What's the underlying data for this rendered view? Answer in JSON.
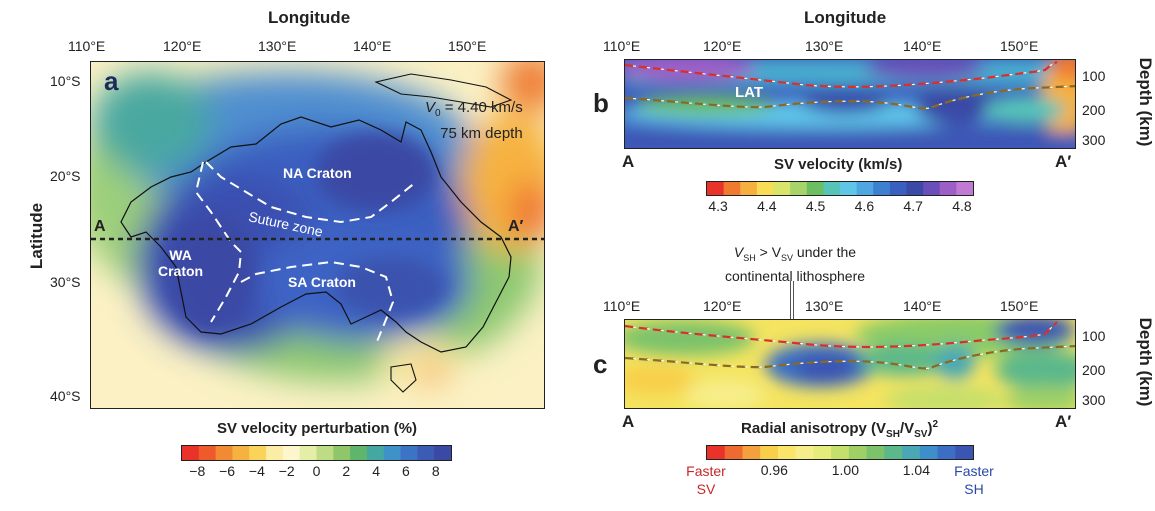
{
  "panel_a": {
    "label": "a",
    "top_title": "Longitude",
    "lon_ticks": [
      "110°E",
      "120°E",
      "130°E",
      "140°E",
      "150°E"
    ],
    "lat_ticks": [
      "10°S",
      "20°S",
      "30°S",
      "40°S"
    ],
    "y_title": "Latitude",
    "v0_symbol": "V",
    "v0_sub": "0",
    "v0_value": " = 4.40 km/s",
    "depth_note": "75 km depth",
    "regions": {
      "na": "NA Craton",
      "wa": "WA\nCraton",
      "sa": "SA Craton",
      "suture": "Suture zone"
    },
    "profile_start": "A",
    "profile_end": "A′",
    "colorbar": {
      "title": "SV velocity perturbation (%)",
      "ticks": [
        "−8",
        "−6",
        "−4",
        "−2",
        "0",
        "2",
        "4",
        "6",
        "8"
      ],
      "colors": [
        "#e8322a",
        "#ee5a2c",
        "#f28a33",
        "#f6b240",
        "#f9d35a",
        "#fbeca6",
        "#fdf6cc",
        "#e4eea6",
        "#bddc85",
        "#8fc66a",
        "#5fb56c",
        "#45a8a0",
        "#3e92c8",
        "#3b74c4",
        "#3c5bb5",
        "#3a49a4"
      ]
    }
  },
  "panel_b": {
    "label": "b",
    "top_title": "Longitude",
    "lon_ticks": [
      "110°E",
      "120°E",
      "130°E",
      "140°E",
      "150°E"
    ],
    "depth_ticks": [
      "100",
      "200",
      "300"
    ],
    "depth_title": "Depth (km)",
    "lat_label": "LAT",
    "start": "A",
    "end": "A′",
    "colorbar": {
      "title": "SV velocity (km/s)",
      "ticks": [
        "4.3",
        "4.4",
        "4.5",
        "4.6",
        "4.7",
        "4.8"
      ],
      "colors": [
        "#e8322a",
        "#f07a30",
        "#f6b040",
        "#f8dc55",
        "#d8e46a",
        "#a6d36a",
        "#6cbf60",
        "#56c5b8",
        "#5fc6e8",
        "#4fa6e0",
        "#3d7fd0",
        "#3a5fc0",
        "#3b4aa6",
        "#6a4fb8",
        "#9d5fc6",
        "#c07ad4"
      ]
    }
  },
  "panel_c": {
    "label": "c",
    "lon_ticks": [
      "110°E",
      "120°E",
      "130°E",
      "140°E",
      "150°E"
    ],
    "depth_ticks": [
      "100",
      "200",
      "300"
    ],
    "depth_title": "Depth (km)",
    "annotation_line1": "V",
    "annotation_sub1": "SH",
    "annotation_mid": " > V",
    "annotation_sub2": "SV",
    "annotation_end": " under the",
    "annotation_line2": "continental lithosphere",
    "start": "A",
    "end": "A′",
    "colorbar": {
      "title": "Radial anisotropy (V",
      "title_sub1": "SH",
      "title_mid": "/V",
      "title_sub2": "SV",
      "title_end": ")",
      "title_sup": "2",
      "ticks": [
        "0.96",
        "1.00",
        "1.04"
      ],
      "left_label": "Faster\nSV",
      "right_label": "Faster\nSH",
      "left_color": "#c8262a",
      "right_color": "#2a48a8",
      "colors": [
        "#e8322a",
        "#ee6a30",
        "#f4a03c",
        "#f8cf4a",
        "#fae46a",
        "#f6ee8a",
        "#e6ec7a",
        "#c4df6c",
        "#9ed066",
        "#7cc26a",
        "#5cb88a",
        "#4aa8b4",
        "#3f8ecc",
        "#3b6ec4",
        "#3a55b2"
      ]
    }
  }
}
